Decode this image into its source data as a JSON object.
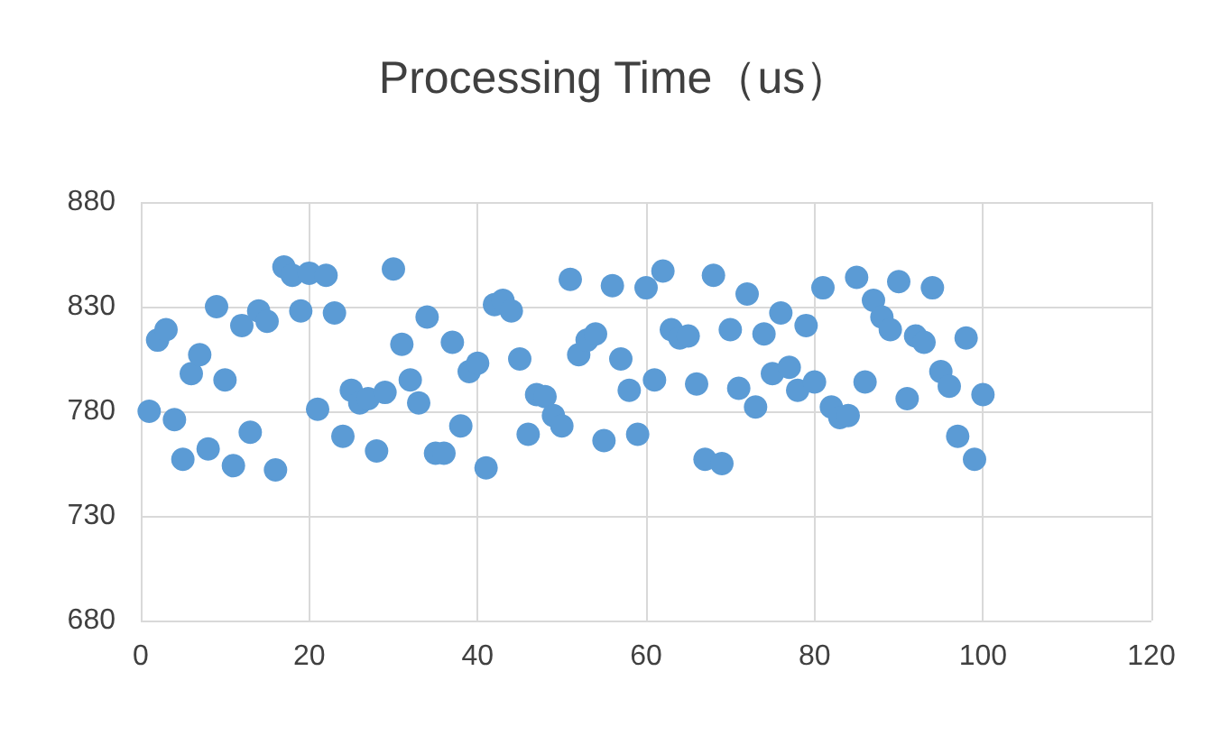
{
  "chart_data": {
    "type": "scatter",
    "title": "Processing Time（us）",
    "x": [
      1,
      2,
      3,
      4,
      5,
      6,
      7,
      8,
      9,
      10,
      11,
      12,
      13,
      14,
      15,
      16,
      17,
      18,
      19,
      20,
      21,
      22,
      23,
      24,
      25,
      26,
      27,
      28,
      29,
      30,
      31,
      32,
      33,
      34,
      35,
      36,
      37,
      38,
      39,
      40,
      41,
      42,
      43,
      44,
      45,
      46,
      47,
      48,
      49,
      50,
      51,
      52,
      53,
      54,
      55,
      56,
      57,
      58,
      59,
      60,
      61,
      62,
      63,
      64,
      65,
      66,
      67,
      68,
      69,
      70,
      71,
      72,
      73,
      74,
      75,
      76,
      77,
      78,
      79,
      80,
      81,
      82,
      83,
      84,
      85,
      86,
      87,
      88,
      89,
      90,
      91,
      92,
      93,
      94,
      95,
      96,
      97,
      98,
      99,
      100
    ],
    "series": [
      {
        "color": "#5b9bd5",
        "values": [
          780,
          814,
          819,
          776,
          757,
          798,
          807,
          762,
          830,
          795,
          754,
          821,
          770,
          828,
          823,
          752,
          849,
          845,
          828,
          846,
          781,
          845,
          827,
          768,
          790,
          784,
          786,
          761,
          789,
          848,
          812,
          795,
          784,
          825,
          760,
          760,
          813,
          773,
          799,
          803,
          753,
          831,
          833,
          828,
          805,
          769,
          788,
          787,
          778,
          773,
          843,
          807,
          814,
          817,
          766,
          840,
          805,
          790,
          769,
          839,
          795,
          847,
          819,
          815,
          816,
          793,
          757,
          845,
          755,
          819,
          791,
          836,
          782,
          817,
          798,
          827,
          801,
          790,
          821,
          794,
          839,
          782,
          777,
          778,
          844,
          794,
          833,
          825,
          819,
          842,
          786,
          816,
          813,
          839,
          799,
          792,
          768,
          815,
          757,
          788
        ]
      }
    ],
    "xlim": [
      0,
      120
    ],
    "xticks": [
      0,
      20,
      40,
      60,
      80,
      100,
      120
    ],
    "ylim": [
      680,
      880
    ],
    "yticks": [
      680,
      730,
      780,
      830,
      880
    ],
    "grid": true,
    "marker": "circle"
  }
}
